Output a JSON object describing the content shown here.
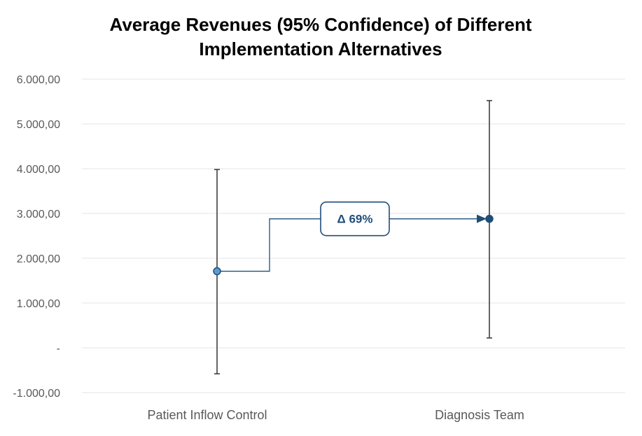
{
  "chart_data": {
    "type": "scatter",
    "title_lines": [
      "Average Revenues (95% Confidence) of Different",
      "Implementation Alternatives"
    ],
    "categories": [
      "Patient Inflow Control",
      "Diagnosis Team"
    ],
    "series": [
      {
        "values": [
          1710,
          2880
        ],
        "lower": [
          -580,
          220
        ],
        "upper": [
          3980,
          5520
        ]
      }
    ],
    "ylim": [
      -1000,
      6000
    ],
    "yticks": [
      -1000,
      0,
      1000,
      2000,
      3000,
      4000,
      5000,
      6000
    ],
    "ytick_labels": [
      "-1.000,00",
      "-",
      "1.000,00",
      "2.000,00",
      "3.000,00",
      "4.000,00",
      "5.000,00",
      "6.000,00"
    ],
    "grid": true,
    "annotation": {
      "text": "Δ 69%"
    },
    "colors": {
      "point": "#1f4e79",
      "point_fill_first": "#5b9bd5",
      "error_bar": "#404040",
      "gridline": "#e6e6e6",
      "connector": "#1f4e79"
    }
  }
}
